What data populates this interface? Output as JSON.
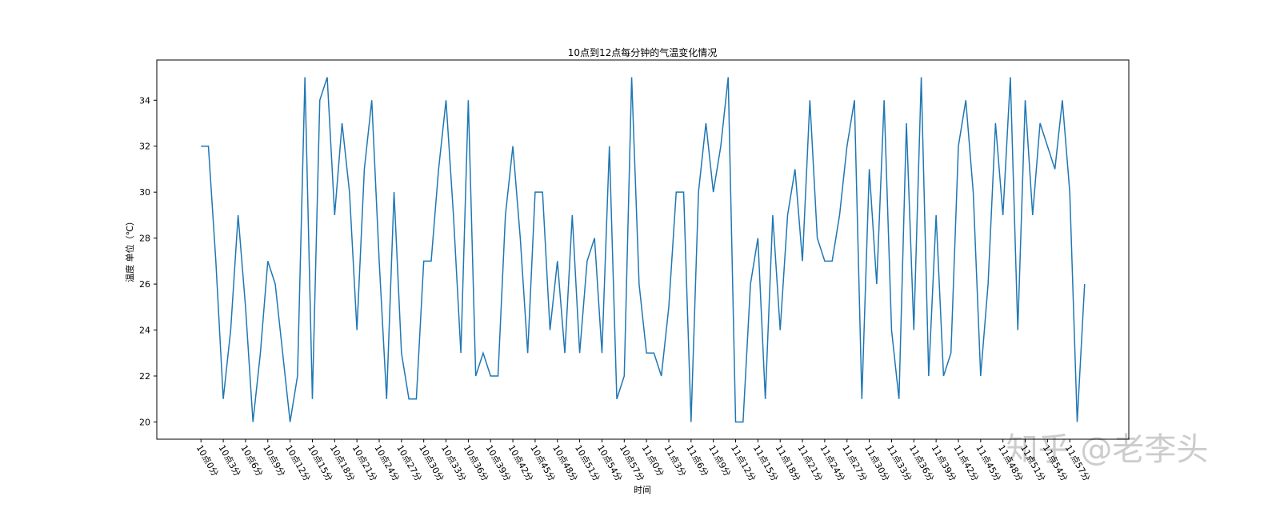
{
  "chart_data": {
    "type": "line",
    "title": "10点到12点每分钟的气温变化情况",
    "x_label": "时间",
    "y_label": "温度 单位（℃）",
    "watermark": "知乎 @老李头",
    "categories": [
      "10点0分",
      null,
      null,
      "10点3分",
      null,
      null,
      "10点6分",
      null,
      null,
      "10点9分",
      null,
      null,
      "10点12分",
      null,
      null,
      "10点15分",
      null,
      null,
      "10点18分",
      null,
      null,
      "10点21分",
      null,
      null,
      "10点24分",
      null,
      null,
      "10点27分",
      null,
      null,
      "10点30分",
      null,
      null,
      "10点33分",
      null,
      null,
      "10点36分",
      null,
      null,
      "10点39分",
      null,
      null,
      "10点42分",
      null,
      null,
      "10点45分",
      null,
      null,
      "10点48分",
      null,
      null,
      "10点51分",
      null,
      null,
      "10点54分",
      null,
      null,
      "10点57分",
      null,
      null,
      "11点0分",
      null,
      null,
      "11点3分",
      null,
      null,
      "11点6分",
      null,
      null,
      "11点9分",
      null,
      null,
      "11点12分",
      null,
      null,
      "11点15分",
      null,
      null,
      "11点18分",
      null,
      null,
      "11点21分",
      null,
      null,
      "11点24分",
      null,
      null,
      "11点27分",
      null,
      null,
      "11点30分",
      null,
      null,
      "11点33分",
      null,
      null,
      "11点36分",
      null,
      null,
      "11点39分",
      null,
      null,
      "11点42分",
      null,
      null,
      "11点45分",
      null,
      null,
      "11点48分",
      null,
      null,
      "11点51分",
      null,
      null,
      "11点54分",
      null,
      null,
      "11点57分",
      null,
      null
    ],
    "series": [
      {
        "color": "#1f77b4",
        "values": [
          32,
          32,
          27,
          21,
          24,
          29,
          25,
          20,
          23,
          27,
          26,
          23,
          20,
          22,
          35,
          21,
          34,
          35,
          29,
          33,
          30,
          24,
          31,
          34,
          27,
          21,
          30,
          23,
          21,
          21,
          27,
          27,
          31,
          34,
          29,
          23,
          34,
          22,
          23,
          22,
          22,
          29,
          32,
          28,
          23,
          30,
          30,
          24,
          27,
          23,
          29,
          23,
          27,
          28,
          23,
          32,
          21,
          22,
          35,
          26,
          23,
          23,
          22,
          25,
          30,
          30,
          20,
          30,
          33,
          30,
          32,
          35,
          20,
          20,
          26,
          28,
          21,
          29,
          24,
          29,
          31,
          27,
          34,
          28,
          27,
          27,
          29,
          32,
          34,
          21,
          31,
          26,
          34,
          24,
          21,
          33,
          24,
          35,
          22,
          29,
          22,
          23,
          32,
          34,
          30,
          22,
          26,
          33,
          29,
          35,
          24,
          34,
          29,
          33,
          32,
          31,
          34,
          30,
          20,
          26
        ]
      }
    ],
    "ylim": [
      19.25,
      35.75
    ],
    "yticks": [
      20,
      22,
      24,
      26,
      28,
      30,
      32,
      34
    ]
  }
}
